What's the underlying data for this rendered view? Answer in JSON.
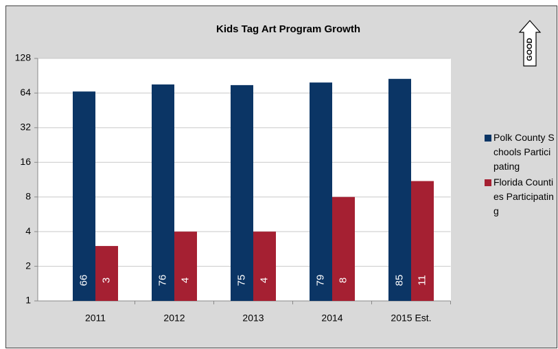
{
  "chart_data": {
    "type": "bar",
    "title": "Kids Tag Art Program Growth",
    "categories": [
      "2011",
      "2012",
      "2013",
      "2014",
      "2015 Est."
    ],
    "series": [
      {
        "name": "Polk County Schools Participating",
        "color": "#0b3565",
        "values": [
          66,
          76,
          75,
          79,
          85
        ]
      },
      {
        "name": "Florida Counties Participating",
        "color": "#a52032",
        "values": [
          3,
          4,
          4,
          8,
          11
        ]
      }
    ],
    "ylim": [
      1,
      128
    ],
    "yticks": [
      1,
      2,
      4,
      8,
      16,
      32,
      64,
      128
    ],
    "log_scale": true,
    "log_base": 2,
    "grid": true,
    "legend": "right",
    "annotation": "GOOD"
  }
}
